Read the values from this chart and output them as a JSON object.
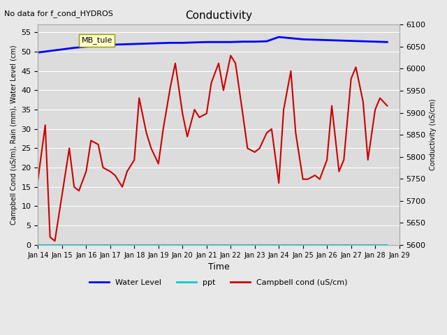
{
  "title": "Conductivity",
  "top_left_text": "No data for f_cond_HYDROS",
  "xlabel": "Time",
  "ylabel_left": "Campbell Cond (uS/m), Rain (mm), Water Level (cm)",
  "ylabel_right": "Conductivity (uS/cm)",
  "ylim_left": [
    0,
    57
  ],
  "ylim_right": [
    5600,
    6100
  ],
  "background_color": "#e8e8e8",
  "plot_bg_color": "#dcdcdc",
  "grid_color": "#ffffff",
  "annotation_box_label": "MB_tule",
  "annotation_box_color": "#ffffcc",
  "annotation_box_edge": "#999900",
  "legend_entries": [
    "Water Level",
    "ppt",
    "Campbell cond (uS/cm)"
  ],
  "legend_colors": [
    "#0000ff",
    "#00cccc",
    "#cc0000"
  ],
  "water_level_color": "#0000ff",
  "ppt_color": "#00cccc",
  "campbell_color": "#cc0000",
  "water_level_data_x": [
    0,
    0.5,
    1,
    1.5,
    2,
    2.5,
    3,
    3.5,
    4,
    4.5,
    5,
    5.5,
    6,
    6.5,
    7,
    7.5,
    8,
    8.5,
    9,
    9.5,
    10,
    10.5,
    11,
    11.5,
    12,
    12.5,
    13,
    13.5,
    14,
    14.5
  ],
  "water_level_data_y": [
    49.8,
    50.2,
    50.6,
    51.0,
    51.3,
    51.6,
    51.8,
    51.9,
    52.0,
    52.1,
    52.2,
    52.3,
    52.3,
    52.4,
    52.5,
    52.5,
    52.5,
    52.6,
    52.6,
    52.7,
    53.8,
    53.5,
    53.2,
    53.1,
    53.0,
    52.9,
    52.8,
    52.7,
    52.6,
    52.5
  ],
  "ppt_data_x": [
    0,
    14.5
  ],
  "ppt_data_y": [
    0,
    0
  ],
  "campbell_data_x": [
    0,
    0.3,
    0.5,
    0.7,
    1.0,
    1.3,
    1.5,
    1.7,
    2.0,
    2.2,
    2.5,
    2.7,
    3.0,
    3.2,
    3.5,
    3.7,
    4.0,
    4.2,
    4.5,
    4.7,
    5.0,
    5.2,
    5.5,
    5.7,
    6.0,
    6.2,
    6.5,
    6.7,
    7.0,
    7.2,
    7.5,
    7.7,
    8.0,
    8.2,
    8.5,
    8.7,
    9.0,
    9.2,
    9.5,
    9.7,
    10.0,
    10.2,
    10.5,
    10.7,
    11.0,
    11.2,
    11.5,
    11.7,
    12.0,
    12.2,
    12.5,
    12.7,
    13.0,
    13.2,
    13.5,
    13.7,
    14.0,
    14.2,
    14.5
  ],
  "campbell_data_y": [
    17,
    31,
    2,
    1,
    13,
    25,
    15,
    14,
    19,
    27,
    26,
    20,
    19,
    18,
    15,
    19,
    22,
    38,
    29,
    25,
    21,
    30,
    41,
    47,
    34,
    28,
    35,
    33,
    34,
    42,
    47,
    40,
    49,
    47,
    34,
    25,
    24,
    25,
    29,
    30,
    16,
    35,
    45,
    29,
    17,
    17,
    18,
    17,
    22,
    36,
    19,
    22,
    43,
    46,
    37,
    22,
    35,
    38,
    36
  ],
  "xtick_labels": [
    "Jan 14",
    "Jan 15",
    "Jan 16",
    "Jan 17",
    "Jan 18",
    "Jan 19",
    "Jan 20",
    "Jan 21",
    "Jan 22",
    "Jan 23",
    "Jan 24",
    "Jan 25",
    "Jan 26",
    "Jan 27",
    "Jan 28",
    "Jan 29"
  ],
  "xtick_positions": [
    0,
    1,
    2,
    3,
    4,
    5,
    6,
    7,
    8,
    9,
    10,
    11,
    12,
    13,
    14,
    15
  ],
  "yticks_left": [
    0,
    5,
    10,
    15,
    20,
    25,
    30,
    35,
    40,
    45,
    50,
    55
  ],
  "yticks_right": [
    5600,
    5650,
    5700,
    5750,
    5800,
    5850,
    5900,
    5950,
    6000,
    6050,
    6100
  ]
}
